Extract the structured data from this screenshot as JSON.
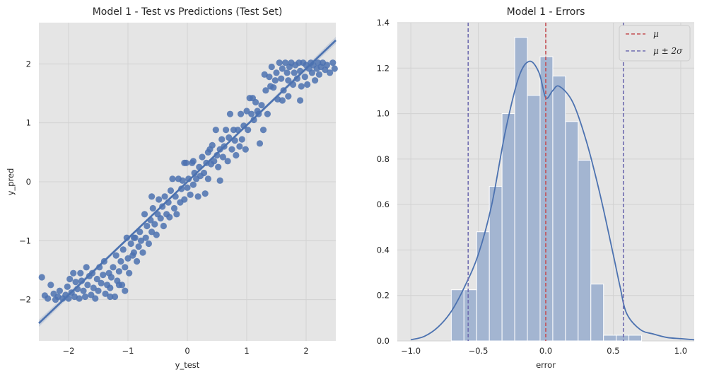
{
  "chart_data": [
    {
      "type": "scatter",
      "title": "Model 1 - Test vs Predictions (Test Set)",
      "xlabel": "y_test",
      "ylabel": "y_pred",
      "xlim": [
        -2.5,
        2.5
      ],
      "ylim": [
        -2.7,
        2.7
      ],
      "xticks": [
        -2,
        -1,
        0,
        1,
        2
      ],
      "yticks": [
        -2,
        -1,
        0,
        1,
        2
      ],
      "xtick_labels": [
        "−2",
        "−1",
        "0",
        "1",
        "2"
      ],
      "ytick_labels": [
        "−2",
        "−1",
        "0",
        "1",
        "2"
      ],
      "grid": true,
      "point_color": "#4c72b0",
      "regression_line": {
        "slope": 0.96,
        "intercept": 0.0
      },
      "points": [
        [
          -2.45,
          -1.62
        ],
        [
          -2.4,
          -1.93
        ],
        [
          -2.35,
          -1.98
        ],
        [
          -2.3,
          -1.75
        ],
        [
          -2.25,
          -1.9
        ],
        [
          -2.22,
          -2.0
        ],
        [
          -2.18,
          -1.95
        ],
        [
          -2.15,
          -1.85
        ],
        [
          -2.1,
          -1.98
        ],
        [
          -2.05,
          -1.92
        ],
        [
          -2.02,
          -1.78
        ],
        [
          -2.0,
          -1.98
        ],
        [
          -1.98,
          -1.65
        ],
        [
          -1.95,
          -1.88
        ],
        [
          -1.92,
          -1.55
        ],
        [
          -1.9,
          -1.95
        ],
        [
          -1.88,
          -1.7
        ],
        [
          -1.85,
          -1.82
        ],
        [
          -1.82,
          -1.98
        ],
        [
          -1.8,
          -1.55
        ],
        [
          -1.78,
          -1.68
        ],
        [
          -1.75,
          -1.85
        ],
        [
          -1.72,
          -1.95
        ],
        [
          -1.7,
          -1.45
        ],
        [
          -1.68,
          -1.75
        ],
        [
          -1.65,
          -1.6
        ],
        [
          -1.62,
          -1.92
        ],
        [
          -1.6,
          -1.55
        ],
        [
          -1.58,
          -1.8
        ],
        [
          -1.55,
          -1.98
        ],
        [
          -1.52,
          -1.65
        ],
        [
          -1.5,
          -1.85
        ],
        [
          -1.48,
          -1.45
        ],
        [
          -1.45,
          -1.72
        ],
        [
          -1.42,
          -1.58
        ],
        [
          -1.4,
          -1.35
        ],
        [
          -1.38,
          -1.9
        ],
        [
          -1.35,
          -1.75
        ],
        [
          -1.32,
          -1.55
        ],
        [
          -1.3,
          -1.8
        ],
        [
          -1.28,
          -1.62
        ],
        [
          -1.25,
          -1.45
        ],
        [
          -1.22,
          -1.95
        ],
        [
          -1.2,
          -1.25
        ],
        [
          -1.18,
          -1.68
        ],
        [
          -1.15,
          -1.52
        ],
        [
          -1.12,
          -1.35
        ],
        [
          -1.1,
          -1.75
        ],
        [
          -1.08,
          -1.15
        ],
        [
          -1.05,
          -1.45
        ],
        [
          -1.02,
          -0.95
        ],
        [
          -1.0,
          -1.3
        ],
        [
          -0.98,
          -1.55
        ],
        [
          -0.95,
          -1.05
        ],
        [
          -0.92,
          -1.25
        ],
        [
          -0.9,
          -1.2
        ],
        [
          -0.88,
          -0.95
        ],
        [
          -0.85,
          -1.35
        ],
        [
          -0.82,
          -1.1
        ],
        [
          -0.8,
          -0.85
        ],
        [
          -0.78,
          -1.0
        ],
        [
          -0.75,
          -1.2
        ],
        [
          -0.72,
          -0.55
        ],
        [
          -0.7,
          -0.95
        ],
        [
          -0.68,
          -0.75
        ],
        [
          -0.65,
          -1.05
        ],
        [
          -0.62,
          -0.65
        ],
        [
          -0.6,
          -0.85
        ],
        [
          -0.58,
          -0.45
        ],
        [
          -0.55,
          -0.72
        ],
        [
          -0.52,
          -0.9
        ],
        [
          -0.5,
          -0.55
        ],
        [
          -0.48,
          -0.3
        ],
        [
          -0.45,
          -0.62
        ],
        [
          -0.42,
          -0.42
        ],
        [
          -0.4,
          -0.75
        ],
        [
          -0.38,
          -0.25
        ],
        [
          -0.35,
          -0.55
        ],
        [
          -0.32,
          -0.35
        ],
        [
          -0.3,
          -0.6
        ],
        [
          -0.28,
          -0.15
        ],
        [
          -0.25,
          0.05
        ],
        [
          -0.22,
          -0.45
        ],
        [
          -0.2,
          -0.25
        ],
        [
          -0.18,
          -0.55
        ],
        [
          -0.15,
          0.05
        ],
        [
          -0.12,
          -0.35
        ],
        [
          -0.1,
          -0.12
        ],
        [
          -0.08,
          0.02
        ],
        [
          -0.05,
          -0.3
        ],
        [
          -0.02,
          0.32
        ],
        [
          0.0,
          -0.1
        ],
        [
          0.02,
          0.05
        ],
        [
          0.05,
          -0.22
        ],
        [
          0.08,
          0.32
        ],
        [
          0.1,
          -0.05
        ],
        [
          0.12,
          0.15
        ],
        [
          0.15,
          0.05
        ],
        [
          0.18,
          -0.25
        ],
        [
          0.2,
          0.25
        ],
        [
          0.22,
          0.1
        ],
        [
          0.25,
          0.42
        ],
        [
          0.28,
          0.15
        ],
        [
          0.3,
          -0.2
        ],
        [
          0.32,
          0.32
        ],
        [
          0.35,
          0.05
        ],
        [
          0.38,
          0.55
        ],
        [
          0.4,
          0.3
        ],
        [
          0.42,
          0.62
        ],
        [
          0.45,
          0.35
        ],
        [
          0.48,
          0.88
        ],
        [
          0.5,
          0.45
        ],
        [
          0.52,
          0.25
        ],
        [
          0.55,
          0.55
        ],
        [
          0.58,
          0.72
        ],
        [
          0.6,
          0.42
        ],
        [
          0.62,
          0.6
        ],
        [
          0.65,
          0.88
        ],
        [
          0.68,
          0.35
        ],
        [
          0.7,
          0.75
        ],
        [
          0.72,
          1.15
        ],
        [
          0.75,
          0.55
        ],
        [
          0.78,
          0.88
        ],
        [
          0.8,
          0.7
        ],
        [
          0.82,
          0.45
        ],
        [
          0.85,
          0.88
        ],
        [
          0.88,
          0.6
        ],
        [
          0.9,
          1.15
        ],
        [
          0.92,
          0.72
        ],
        [
          0.95,
          0.95
        ],
        [
          0.98,
          0.55
        ],
        [
          1.0,
          1.2
        ],
        [
          1.02,
          0.88
        ],
        [
          1.05,
          1.42
        ],
        [
          1.08,
          1.15
        ],
        [
          1.1,
          1.42
        ],
        [
          1.12,
          1.05
        ],
        [
          1.15,
          1.35
        ],
        [
          1.18,
          1.2
        ],
        [
          1.2,
          1.15
        ],
        [
          1.22,
          0.65
        ],
        [
          1.25,
          1.3
        ],
        [
          1.28,
          0.88
        ],
        [
          1.3,
          1.82
        ],
        [
          1.32,
          1.55
        ],
        [
          1.35,
          1.15
        ],
        [
          1.38,
          1.78
        ],
        [
          1.4,
          1.62
        ],
        [
          1.42,
          1.95
        ],
        [
          1.45,
          1.6
        ],
        [
          1.48,
          1.72
        ],
        [
          1.5,
          1.85
        ],
        [
          1.52,
          1.4
        ],
        [
          1.55,
          2.02
        ],
        [
          1.58,
          1.75
        ],
        [
          1.6,
          1.92
        ],
        [
          1.62,
          1.55
        ],
        [
          1.65,
          2.02
        ],
        [
          1.68,
          1.85
        ],
        [
          1.7,
          1.72
        ],
        [
          1.72,
          1.95
        ],
        [
          1.75,
          2.02
        ],
        [
          1.78,
          1.65
        ],
        [
          1.8,
          1.85
        ],
        [
          1.82,
          1.98
        ],
        [
          1.85,
          1.75
        ],
        [
          1.88,
          2.02
        ],
        [
          1.9,
          1.88
        ],
        [
          1.92,
          1.62
        ],
        [
          1.95,
          2.02
        ],
        [
          1.98,
          1.78
        ],
        [
          2.0,
          1.98
        ],
        [
          2.02,
          1.65
        ],
        [
          2.05,
          1.92
        ],
        [
          2.08,
          2.02
        ],
        [
          2.1,
          1.85
        ],
        [
          2.12,
          1.98
        ],
        [
          2.15,
          1.72
        ],
        [
          2.18,
          1.92
        ],
        [
          2.2,
          2.02
        ],
        [
          2.22,
          1.82
        ],
        [
          2.25,
          1.95
        ],
        [
          2.28,
          2.02
        ],
        [
          2.32,
          1.9
        ],
        [
          2.35,
          1.98
        ],
        [
          2.4,
          1.85
        ],
        [
          2.45,
          2.02
        ],
        [
          2.48,
          1.92
        ],
        [
          1.6,
          1.38
        ],
        [
          1.7,
          1.45
        ],
        [
          1.9,
          1.38
        ],
        [
          0.55,
          0.02
        ],
        [
          -0.05,
          0.32
        ],
        [
          0.1,
          0.35
        ],
        [
          -1.3,
          -1.95
        ],
        [
          -1.15,
          -1.75
        ],
        [
          -1.05,
          -1.85
        ],
        [
          -0.9,
          -0.95
        ],
        [
          -0.6,
          -0.25
        ],
        [
          0.35,
          0.5
        ]
      ]
    },
    {
      "type": "bar",
      "title": "Model 1  - Errors",
      "xlabel": "error",
      "ylabel": "",
      "xlim": [
        -1.1,
        1.1
      ],
      "ylim": [
        0,
        1.4
      ],
      "xticks": [
        -1.0,
        -0.5,
        0.0,
        0.5,
        1.0
      ],
      "xtick_labels": [
        "−1.0",
        "−0.5",
        "0.0",
        "0.5",
        "1.0"
      ],
      "yticks": [
        0.0,
        0.2,
        0.4,
        0.6,
        0.8,
        1.0,
        1.2,
        1.4
      ],
      "ytick_labels": [
        "0.0",
        "0.2",
        "0.4",
        "0.6",
        "0.8",
        "1.0",
        "1.2",
        "1.4"
      ],
      "grid": true,
      "bin_edges": [
        -0.7,
        -0.606,
        -0.512,
        -0.418,
        -0.324,
        -0.23,
        -0.136,
        -0.042,
        0.052,
        0.146,
        0.24,
        0.334,
        0.428,
        0.522,
        0.616,
        0.71,
        0.804
      ],
      "density": [
        0.225,
        0.225,
        0.48,
        0.68,
        1.0,
        1.335,
        1.08,
        1.25,
        1.165,
        0.965,
        0.795,
        0.25,
        0.025,
        0.025,
        0.025,
        0.0
      ],
      "kde_x": [
        -1.0,
        -0.9,
        -0.8,
        -0.7,
        -0.6,
        -0.5,
        -0.4,
        -0.3,
        -0.2,
        -0.12,
        -0.05,
        0.0,
        0.05,
        0.1,
        0.2,
        0.3,
        0.4,
        0.5,
        0.55,
        0.6,
        0.7,
        0.8,
        0.9,
        1.0,
        1.1
      ],
      "kde_y": [
        0.005,
        0.02,
        0.06,
        0.13,
        0.24,
        0.38,
        0.6,
        0.92,
        1.16,
        1.23,
        1.18,
        1.07,
        1.1,
        1.12,
        1.05,
        0.88,
        0.65,
        0.38,
        0.24,
        0.12,
        0.05,
        0.03,
        0.015,
        0.01,
        0.005
      ],
      "mean": 0.0,
      "sigma_lines": [
        -0.575,
        0.575
      ],
      "legend": [
        "μ",
        "μ ± 2σ"
      ],
      "legend_position": "top-right",
      "bar_color": "#a3b5d1",
      "kde_color": "#4c72b0",
      "mean_color": "#c44e52",
      "sigma_color": "#6f6cb0"
    }
  ]
}
